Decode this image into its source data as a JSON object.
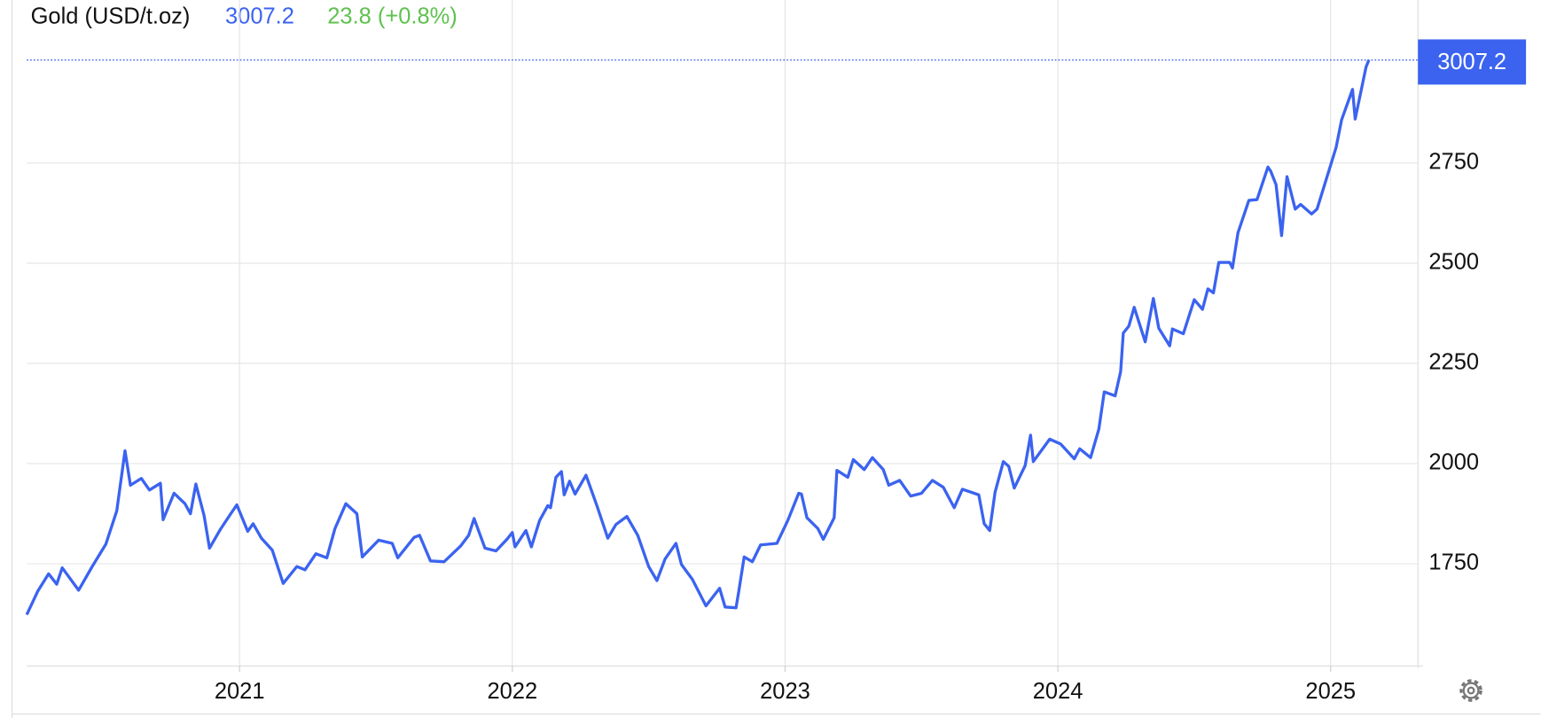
{
  "chart_data": {
    "type": "line",
    "title": "Gold (USD/t.oz)",
    "change_label": "23.8 (+0.8%)",
    "color": "#3b63f0",
    "change_color": "#5ec24e",
    "grid": true,
    "xlim": [
      2020.22,
      2025.32
    ],
    "xticks": [
      2021,
      2022,
      2023,
      2024,
      2025
    ],
    "ylim": [
      1495,
      3157
    ],
    "yticks": [
      1750,
      2000,
      2250,
      2500,
      2750
    ],
    "x": [
      2020.22,
      2020.26,
      2020.3,
      2020.33,
      2020.35,
      2020.41,
      2020.46,
      2020.51,
      2020.55,
      2020.58,
      2020.6,
      2020.64,
      2020.67,
      2020.71,
      2020.72,
      2020.76,
      2020.8,
      2020.82,
      2020.84,
      2020.87,
      2020.89,
      2020.93,
      2020.97,
      2020.99,
      2021.03,
      2021.05,
      2021.08,
      2021.12,
      2021.16,
      2021.21,
      2021.24,
      2021.28,
      2021.32,
      2021.35,
      2021.39,
      2021.43,
      2021.45,
      2021.51,
      2021.56,
      2021.58,
      2021.64,
      2021.66,
      2021.7,
      2021.75,
      2021.81,
      2021.84,
      2021.86,
      2021.9,
      2021.94,
      2021.98,
      2022.0,
      2022.01,
      2022.05,
      2022.07,
      2022.1,
      2022.13,
      2022.14,
      2022.16,
      2022.18,
      2022.19,
      2022.21,
      2022.23,
      2022.27,
      2022.31,
      2022.35,
      2022.38,
      2022.42,
      2022.46,
      2022.5,
      2022.53,
      2022.56,
      2022.6,
      2022.62,
      2022.66,
      2022.71,
      2022.76,
      2022.78,
      2022.82,
      2022.83,
      2022.85,
      2022.88,
      2022.91,
      2022.97,
      2023.01,
      2023.05,
      2023.06,
      2023.08,
      2023.12,
      2023.14,
      2023.18,
      2023.19,
      2023.23,
      2023.25,
      2023.29,
      2023.32,
      2023.36,
      2023.38,
      2023.42,
      2023.46,
      2023.5,
      2023.54,
      2023.58,
      2023.62,
      2023.65,
      2023.71,
      2023.73,
      2023.75,
      2023.77,
      2023.8,
      2023.82,
      2023.84,
      2023.88,
      2023.9,
      2023.91,
      2023.97,
      2024.01,
      2024.06,
      2024.08,
      2024.12,
      2024.15,
      2024.17,
      2024.21,
      2024.23,
      2024.24,
      2024.26,
      2024.28,
      2024.32,
      2024.35,
      2024.37,
      2024.41,
      2024.42,
      2024.46,
      2024.5,
      2024.53,
      2024.55,
      2024.57,
      2024.59,
      2024.63,
      2024.64,
      2024.66,
      2024.7,
      2024.73,
      2024.77,
      2024.78,
      2024.8,
      2024.82,
      2024.84,
      2024.87,
      2024.89,
      2024.93,
      2024.95,
      2024.98,
      2025.02,
      2025.04,
      2025.08,
      2025.09,
      2025.13,
      2025.14
    ],
    "values": [
      1623,
      1681,
      1725,
      1699,
      1740,
      1684,
      1743,
      1799,
      1882,
      2032,
      1946,
      1963,
      1934,
      1951,
      1860,
      1926,
      1900,
      1875,
      1949,
      1870,
      1789,
      1836,
      1877,
      1897,
      1831,
      1850,
      1814,
      1784,
      1701,
      1743,
      1735,
      1775,
      1765,
      1838,
      1900,
      1875,
      1767,
      1809,
      1801,
      1765,
      1816,
      1821,
      1757,
      1755,
      1794,
      1821,
      1863,
      1789,
      1782,
      1811,
      1828,
      1792,
      1833,
      1792,
      1858,
      1895,
      1890,
      1966,
      1980,
      1922,
      1956,
      1924,
      1971,
      1895,
      1814,
      1848,
      1868,
      1821,
      1743,
      1708,
      1762,
      1801,
      1748,
      1711,
      1645,
      1689,
      1642,
      1640,
      1681,
      1767,
      1755,
      1797,
      1801,
      1858,
      1926,
      1924,
      1865,
      1838,
      1811,
      1865,
      1983,
      1966,
      2010,
      1985,
      2015,
      1985,
      1946,
      1958,
      1919,
      1926,
      1958,
      1941,
      1890,
      1936,
      1922,
      1850,
      1833,
      1929,
      2005,
      1993,
      1939,
      1995,
      2071,
      2005,
      2061,
      2049,
      2012,
      2037,
      2015,
      2086,
      2179,
      2169,
      2230,
      2326,
      2343,
      2390,
      2304,
      2412,
      2338,
      2294,
      2336,
      2324,
      2409,
      2385,
      2436,
      2426,
      2502,
      2502,
      2488,
      2576,
      2657,
      2659,
      2740,
      2730,
      2696,
      2569,
      2716,
      2635,
      2647,
      2623,
      2635,
      2701,
      2789,
      2858,
      2934,
      2860,
      2990,
      3007.2
    ]
  }
}
